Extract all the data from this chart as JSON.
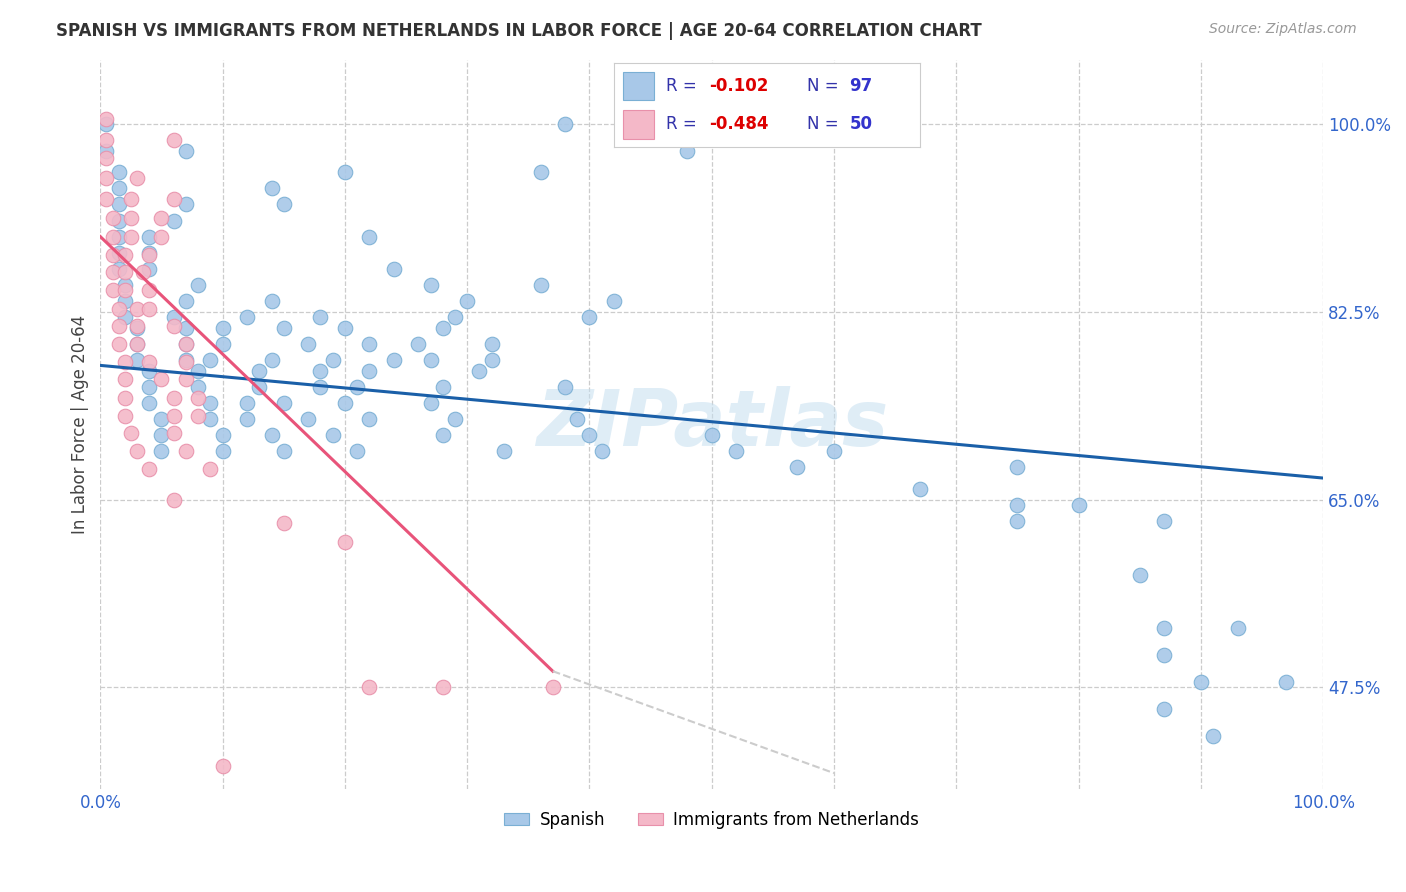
{
  "title": "SPANISH VS IMMIGRANTS FROM NETHERLANDS IN LABOR FORCE | AGE 20-64 CORRELATION CHART",
  "source": "Source: ZipAtlas.com",
  "ylabel": "In Labor Force | Age 20-64",
  "xlim": [
    0.0,
    1.0
  ],
  "ylim": [
    0.38,
    1.06
  ],
  "blue_color": "#a8c8e8",
  "blue_edge_color": "#7aafd4",
  "pink_color": "#f4b8c8",
  "pink_edge_color": "#e890aa",
  "blue_line_color": "#1a5fa8",
  "pink_line_color": "#e8547a",
  "dashed_color": "#cccccc",
  "legend_label_blue": "Spanish",
  "legend_label_pink": "Immigrants from Netherlands",
  "watermark": "ZIPatlas",
  "background_color": "#ffffff",
  "ytick_positions": [
    0.475,
    0.65,
    0.825,
    1.0
  ],
  "ytick_labels": [
    "47.5%",
    "65.0%",
    "82.5%",
    "100.0%"
  ],
  "blue_line": {
    "x0": 0.0,
    "y0": 0.775,
    "x1": 1.0,
    "y1": 0.67
  },
  "pink_line": {
    "x0": 0.0,
    "y0": 0.895,
    "x1": 0.37,
    "y1": 0.49
  },
  "dashed_line": {
    "x0": 0.37,
    "y0": 0.49,
    "x1": 0.6,
    "y1": 0.395
  },
  "blue_points": [
    [
      0.005,
      1.0
    ],
    [
      0.38,
      1.0
    ],
    [
      0.005,
      0.975
    ],
    [
      0.07,
      0.975
    ],
    [
      0.48,
      0.975
    ],
    [
      0.015,
      0.955
    ],
    [
      0.2,
      0.955
    ],
    [
      0.36,
      0.955
    ],
    [
      0.015,
      0.94
    ],
    [
      0.14,
      0.94
    ],
    [
      0.015,
      0.925
    ],
    [
      0.07,
      0.925
    ],
    [
      0.15,
      0.925
    ],
    [
      0.015,
      0.91
    ],
    [
      0.06,
      0.91
    ],
    [
      0.015,
      0.895
    ],
    [
      0.04,
      0.895
    ],
    [
      0.22,
      0.895
    ],
    [
      0.015,
      0.88
    ],
    [
      0.04,
      0.88
    ],
    [
      0.015,
      0.865
    ],
    [
      0.04,
      0.865
    ],
    [
      0.24,
      0.865
    ],
    [
      0.02,
      0.85
    ],
    [
      0.08,
      0.85
    ],
    [
      0.27,
      0.85
    ],
    [
      0.36,
      0.85
    ],
    [
      0.02,
      0.835
    ],
    [
      0.07,
      0.835
    ],
    [
      0.14,
      0.835
    ],
    [
      0.3,
      0.835
    ],
    [
      0.42,
      0.835
    ],
    [
      0.02,
      0.82
    ],
    [
      0.06,
      0.82
    ],
    [
      0.12,
      0.82
    ],
    [
      0.18,
      0.82
    ],
    [
      0.29,
      0.82
    ],
    [
      0.4,
      0.82
    ],
    [
      0.03,
      0.81
    ],
    [
      0.07,
      0.81
    ],
    [
      0.1,
      0.81
    ],
    [
      0.15,
      0.81
    ],
    [
      0.2,
      0.81
    ],
    [
      0.28,
      0.81
    ],
    [
      0.03,
      0.795
    ],
    [
      0.07,
      0.795
    ],
    [
      0.1,
      0.795
    ],
    [
      0.17,
      0.795
    ],
    [
      0.22,
      0.795
    ],
    [
      0.26,
      0.795
    ],
    [
      0.32,
      0.795
    ],
    [
      0.03,
      0.78
    ],
    [
      0.07,
      0.78
    ],
    [
      0.09,
      0.78
    ],
    [
      0.14,
      0.78
    ],
    [
      0.19,
      0.78
    ],
    [
      0.24,
      0.78
    ],
    [
      0.27,
      0.78
    ],
    [
      0.32,
      0.78
    ],
    [
      0.04,
      0.77
    ],
    [
      0.08,
      0.77
    ],
    [
      0.13,
      0.77
    ],
    [
      0.18,
      0.77
    ],
    [
      0.22,
      0.77
    ],
    [
      0.31,
      0.77
    ],
    [
      0.04,
      0.755
    ],
    [
      0.08,
      0.755
    ],
    [
      0.13,
      0.755
    ],
    [
      0.18,
      0.755
    ],
    [
      0.21,
      0.755
    ],
    [
      0.28,
      0.755
    ],
    [
      0.38,
      0.755
    ],
    [
      0.04,
      0.74
    ],
    [
      0.09,
      0.74
    ],
    [
      0.12,
      0.74
    ],
    [
      0.15,
      0.74
    ],
    [
      0.2,
      0.74
    ],
    [
      0.27,
      0.74
    ],
    [
      0.05,
      0.725
    ],
    [
      0.09,
      0.725
    ],
    [
      0.12,
      0.725
    ],
    [
      0.17,
      0.725
    ],
    [
      0.22,
      0.725
    ],
    [
      0.29,
      0.725
    ],
    [
      0.39,
      0.725
    ],
    [
      0.05,
      0.71
    ],
    [
      0.1,
      0.71
    ],
    [
      0.14,
      0.71
    ],
    [
      0.19,
      0.71
    ],
    [
      0.28,
      0.71
    ],
    [
      0.4,
      0.71
    ],
    [
      0.5,
      0.71
    ],
    [
      0.05,
      0.695
    ],
    [
      0.1,
      0.695
    ],
    [
      0.15,
      0.695
    ],
    [
      0.21,
      0.695
    ],
    [
      0.33,
      0.695
    ],
    [
      0.41,
      0.695
    ],
    [
      0.52,
      0.695
    ],
    [
      0.6,
      0.695
    ],
    [
      0.57,
      0.68
    ],
    [
      0.75,
      0.68
    ],
    [
      0.67,
      0.66
    ],
    [
      0.75,
      0.645
    ],
    [
      0.8,
      0.645
    ],
    [
      0.75,
      0.63
    ],
    [
      0.87,
      0.63
    ],
    [
      0.85,
      0.58
    ],
    [
      0.87,
      0.53
    ],
    [
      0.93,
      0.53
    ],
    [
      0.87,
      0.505
    ],
    [
      0.9,
      0.48
    ],
    [
      0.97,
      0.48
    ],
    [
      0.87,
      0.455
    ],
    [
      0.91,
      0.43
    ]
  ],
  "pink_points": [
    [
      0.005,
      1.005
    ],
    [
      0.005,
      0.985
    ],
    [
      0.06,
      0.985
    ],
    [
      0.005,
      0.968
    ],
    [
      0.005,
      0.95
    ],
    [
      0.03,
      0.95
    ],
    [
      0.005,
      0.93
    ],
    [
      0.025,
      0.93
    ],
    [
      0.06,
      0.93
    ],
    [
      0.01,
      0.912
    ],
    [
      0.025,
      0.912
    ],
    [
      0.05,
      0.912
    ],
    [
      0.01,
      0.895
    ],
    [
      0.025,
      0.895
    ],
    [
      0.05,
      0.895
    ],
    [
      0.01,
      0.878
    ],
    [
      0.02,
      0.878
    ],
    [
      0.04,
      0.878
    ],
    [
      0.01,
      0.862
    ],
    [
      0.02,
      0.862
    ],
    [
      0.035,
      0.862
    ],
    [
      0.01,
      0.845
    ],
    [
      0.02,
      0.845
    ],
    [
      0.04,
      0.845
    ],
    [
      0.015,
      0.828
    ],
    [
      0.03,
      0.828
    ],
    [
      0.04,
      0.828
    ],
    [
      0.015,
      0.812
    ],
    [
      0.03,
      0.812
    ],
    [
      0.06,
      0.812
    ],
    [
      0.015,
      0.795
    ],
    [
      0.03,
      0.795
    ],
    [
      0.07,
      0.795
    ],
    [
      0.02,
      0.778
    ],
    [
      0.04,
      0.778
    ],
    [
      0.07,
      0.778
    ],
    [
      0.02,
      0.762
    ],
    [
      0.05,
      0.762
    ],
    [
      0.07,
      0.762
    ],
    [
      0.02,
      0.745
    ],
    [
      0.06,
      0.745
    ],
    [
      0.08,
      0.745
    ],
    [
      0.02,
      0.728
    ],
    [
      0.06,
      0.728
    ],
    [
      0.08,
      0.728
    ],
    [
      0.025,
      0.712
    ],
    [
      0.06,
      0.712
    ],
    [
      0.03,
      0.695
    ],
    [
      0.07,
      0.695
    ],
    [
      0.04,
      0.678
    ],
    [
      0.09,
      0.678
    ],
    [
      0.06,
      0.65
    ],
    [
      0.15,
      0.628
    ],
    [
      0.2,
      0.61
    ],
    [
      0.22,
      0.475
    ],
    [
      0.28,
      0.475
    ],
    [
      0.37,
      0.475
    ],
    [
      0.1,
      0.402
    ]
  ]
}
